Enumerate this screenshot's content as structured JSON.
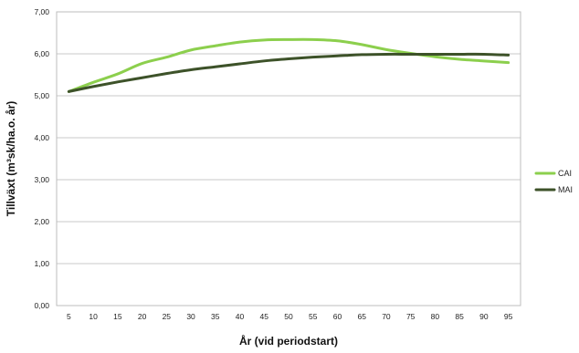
{
  "chart_data": {
    "type": "line",
    "title": "",
    "xlabel": "År (vid periodstart)",
    "ylabel": "Tillväxt (m³sk/ha.o. år)",
    "x": [
      5,
      10,
      15,
      20,
      25,
      30,
      35,
      40,
      45,
      50,
      55,
      60,
      65,
      70,
      75,
      80,
      85,
      90,
      95
    ],
    "y_ticks": [
      "0,00",
      "1,00",
      "2,00",
      "3,00",
      "4,00",
      "5,00",
      "6,00",
      "7,00"
    ],
    "ylim": [
      0,
      7
    ],
    "grid": true,
    "legend_position": "right",
    "series": [
      {
        "name": "CAI",
        "color": "#8ccf4d",
        "values": [
          5.1,
          5.32,
          5.52,
          5.77,
          5.92,
          6.09,
          6.19,
          6.28,
          6.33,
          6.34,
          6.34,
          6.31,
          6.22,
          6.1,
          6.01,
          5.93,
          5.87,
          5.83,
          5.79
        ]
      },
      {
        "name": "MAI",
        "color": "#3d5229",
        "values": [
          5.1,
          5.22,
          5.33,
          5.43,
          5.53,
          5.62,
          5.69,
          5.76,
          5.83,
          5.88,
          5.92,
          5.95,
          5.98,
          5.99,
          5.99,
          5.99,
          5.99,
          5.99,
          5.97
        ]
      }
    ]
  }
}
